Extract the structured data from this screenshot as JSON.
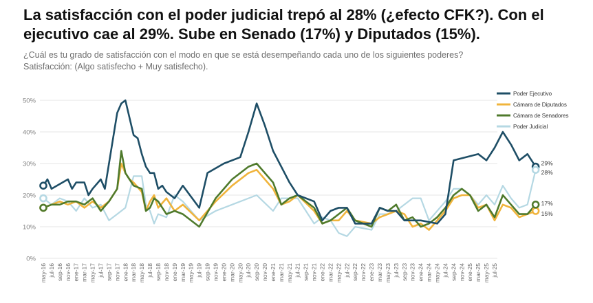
{
  "header": {
    "title_line1": "La satisfacción con el poder judicial trepó al 28% (¿efecto CFK?). Con el",
    "title_line2": "ejecutivo cae al 29%. Sube en Senado (17%) y Diputados (15%).",
    "subtitle_line1": "¿Cuál es tu grado de satisfacción con el modo en que se está desempeñando cada uno de los siguientes poderes?",
    "subtitle_line2": "Satisfacción: (Algo satisfecho + Muy satisfecho)."
  },
  "chart_data": {
    "type": "line",
    "ylim": [
      0,
      50
    ],
    "yticks": [
      "0%",
      "10%",
      "20%",
      "30%",
      "40%",
      "50%"
    ],
    "xticks": [
      "may-16",
      "jul-16",
      "sep-16",
      "nov-16",
      "ene-17",
      "mar-17",
      "may-17",
      "jul-17",
      "sep-17",
      "nov-17",
      "ene-18",
      "mar-18",
      "may-18",
      "jul-18",
      "sep-18",
      "nov-18",
      "ene-19",
      "mar-19",
      "may-19",
      "jul-19",
      "sep-19",
      "nov-19",
      "ene-20",
      "mar-20",
      "may-20",
      "jul-20",
      "sep-20",
      "nov-20",
      "ene-21",
      "mar-21",
      "may-21",
      "jul-21",
      "sep-21",
      "nov-21",
      "ene-22",
      "mar-22",
      "may-22",
      "jul-22",
      "sep-22",
      "nov-22",
      "ene-23",
      "mar-23",
      "may-23",
      "jul-23",
      "sep-23",
      "nov-23",
      "ene-24",
      "mar-24",
      "may-24",
      "jul-24",
      "sep-24",
      "nov-24",
      "ene-25",
      "mar-25",
      "may-25",
      "jul-25"
    ],
    "grid": true,
    "legend_position": "top-right",
    "series": [
      {
        "name": "Poder Ejecutivo",
        "color": "#1e4e66",
        "end_label": "29%",
        "points": [
          [
            0,
            23
          ],
          [
            0.5,
            25
          ],
          [
            1,
            22
          ],
          [
            3,
            25
          ],
          [
            3.5,
            22
          ],
          [
            4,
            24
          ],
          [
            5,
            24
          ],
          [
            5.5,
            20
          ],
          [
            6,
            22
          ],
          [
            7,
            25
          ],
          [
            7.5,
            22
          ],
          [
            8,
            30
          ],
          [
            9,
            46
          ],
          [
            9.5,
            49
          ],
          [
            10,
            50
          ],
          [
            11,
            39
          ],
          [
            11.5,
            38
          ],
          [
            12,
            33
          ],
          [
            12.5,
            29
          ],
          [
            13,
            27
          ],
          [
            13.5,
            27
          ],
          [
            14,
            22
          ],
          [
            14.5,
            23
          ],
          [
            15,
            21
          ],
          [
            16,
            19
          ],
          [
            17,
            23
          ],
          [
            19,
            16
          ],
          [
            20,
            27
          ],
          [
            22,
            30
          ],
          [
            24,
            32
          ],
          [
            25,
            40
          ],
          [
            26,
            49
          ],
          [
            27,
            42
          ],
          [
            28,
            34
          ],
          [
            30,
            24
          ],
          [
            31,
            20
          ],
          [
            33,
            18
          ],
          [
            34,
            12
          ],
          [
            35,
            15
          ],
          [
            36,
            16
          ],
          [
            37,
            16
          ],
          [
            38,
            11
          ],
          [
            40,
            11
          ],
          [
            41,
            16
          ],
          [
            42,
            15
          ],
          [
            43,
            15
          ],
          [
            44,
            12
          ],
          [
            46,
            12
          ],
          [
            48,
            11
          ],
          [
            49,
            14
          ],
          [
            50,
            31
          ],
          [
            53,
            33
          ],
          [
            54,
            31
          ],
          [
            55,
            35
          ],
          [
            56,
            40
          ],
          [
            57,
            36
          ],
          [
            58,
            31
          ],
          [
            59,
            33
          ],
          [
            60,
            29
          ]
        ]
      },
      {
        "name": "Cámara de Diputados",
        "color": "#f0b43c",
        "end_label": "15%",
        "points": [
          [
            0,
            16
          ],
          [
            1,
            17
          ],
          [
            2,
            18
          ],
          [
            3,
            17
          ],
          [
            4,
            18
          ],
          [
            5,
            16
          ],
          [
            6,
            18
          ],
          [
            7,
            16
          ],
          [
            8,
            18
          ],
          [
            9,
            22
          ],
          [
            9.5,
            30
          ],
          [
            10,
            27
          ],
          [
            10.5,
            25
          ],
          [
            11,
            24
          ],
          [
            12,
            21
          ],
          [
            12.5,
            15
          ],
          [
            13,
            18
          ],
          [
            13.5,
            20
          ],
          [
            14,
            16
          ],
          [
            15,
            19
          ],
          [
            16,
            15
          ],
          [
            17,
            17
          ],
          [
            19,
            12
          ],
          [
            21,
            18
          ],
          [
            23,
            23
          ],
          [
            25,
            27
          ],
          [
            26,
            28
          ],
          [
            28,
            22
          ],
          [
            29,
            17
          ],
          [
            30,
            18
          ],
          [
            31,
            20
          ],
          [
            33,
            15
          ],
          [
            34,
            11
          ],
          [
            35,
            12
          ],
          [
            36,
            12
          ],
          [
            37,
            15
          ],
          [
            38,
            12
          ],
          [
            40,
            11
          ],
          [
            41,
            13
          ],
          [
            42,
            14
          ],
          [
            43,
            15
          ],
          [
            44,
            14
          ],
          [
            45,
            10
          ],
          [
            46,
            11
          ],
          [
            47,
            9
          ],
          [
            48,
            12
          ],
          [
            49,
            15
          ],
          [
            50,
            19
          ],
          [
            51,
            20
          ],
          [
            52,
            20
          ],
          [
            53,
            16
          ],
          [
            54,
            17
          ],
          [
            55,
            12
          ],
          [
            56,
            17
          ],
          [
            57,
            16
          ],
          [
            58,
            13
          ],
          [
            59,
            14
          ],
          [
            60,
            15
          ]
        ]
      },
      {
        "name": "Cámara de Senadores",
        "color": "#4f7a2c",
        "end_label": "17%",
        "points": [
          [
            0,
            16
          ],
          [
            1,
            17
          ],
          [
            2,
            17
          ],
          [
            3,
            18
          ],
          [
            4,
            18
          ],
          [
            5,
            17
          ],
          [
            6,
            19
          ],
          [
            7,
            15
          ],
          [
            8,
            18
          ],
          [
            9,
            22
          ],
          [
            9.5,
            34
          ],
          [
            10,
            27
          ],
          [
            10.5,
            25
          ],
          [
            11,
            23
          ],
          [
            12,
            22
          ],
          [
            12.5,
            15
          ],
          [
            13,
            16
          ],
          [
            13.5,
            19
          ],
          [
            14,
            18
          ],
          [
            15,
            14
          ],
          [
            16,
            15
          ],
          [
            17,
            14
          ],
          [
            19,
            10
          ],
          [
            21,
            19
          ],
          [
            23,
            25
          ],
          [
            25,
            29
          ],
          [
            26,
            30
          ],
          [
            28,
            24
          ],
          [
            29,
            17
          ],
          [
            30,
            19
          ],
          [
            31,
            20
          ],
          [
            33,
            16
          ],
          [
            34,
            11
          ],
          [
            35,
            12
          ],
          [
            36,
            14
          ],
          [
            37,
            16
          ],
          [
            38,
            12
          ],
          [
            40,
            10
          ],
          [
            41,
            16
          ],
          [
            42,
            15
          ],
          [
            43,
            17
          ],
          [
            44,
            12
          ],
          [
            45,
            13
          ],
          [
            46,
            10
          ],
          [
            47,
            11
          ],
          [
            48,
            13
          ],
          [
            49,
            16
          ],
          [
            50,
            20
          ],
          [
            51,
            22
          ],
          [
            52,
            20
          ],
          [
            53,
            15
          ],
          [
            54,
            17
          ],
          [
            55,
            13
          ],
          [
            56,
            20
          ],
          [
            57,
            17
          ],
          [
            58,
            14
          ],
          [
            59,
            14
          ],
          [
            60,
            17
          ]
        ]
      },
      {
        "name": "Poder Judicial",
        "color": "#b5d8e3",
        "end_label": "28%",
        "points": [
          [
            0,
            19
          ],
          [
            1,
            17
          ],
          [
            2,
            19
          ],
          [
            3,
            18
          ],
          [
            4,
            15
          ],
          [
            5,
            19
          ],
          [
            6,
            16
          ],
          [
            7,
            17
          ],
          [
            8,
            12
          ],
          [
            9,
            14
          ],
          [
            10,
            16
          ],
          [
            11,
            26
          ],
          [
            12,
            26
          ],
          [
            12.5,
            17
          ],
          [
            13,
            15
          ],
          [
            13.5,
            11
          ],
          [
            14,
            14
          ],
          [
            15,
            13
          ],
          [
            16,
            20
          ],
          [
            17,
            18
          ],
          [
            19,
            12
          ],
          [
            21,
            15
          ],
          [
            23,
            17
          ],
          [
            25,
            19
          ],
          [
            26,
            20
          ],
          [
            28,
            15
          ],
          [
            29,
            19
          ],
          [
            30,
            19
          ],
          [
            31,
            19
          ],
          [
            33,
            11
          ],
          [
            34,
            13
          ],
          [
            35,
            12
          ],
          [
            36,
            8
          ],
          [
            37,
            7
          ],
          [
            38,
            10
          ],
          [
            40,
            9
          ],
          [
            41,
            14
          ],
          [
            42,
            14
          ],
          [
            43,
            15
          ],
          [
            44,
            17
          ],
          [
            45,
            19
          ],
          [
            46,
            19
          ],
          [
            47,
            12
          ],
          [
            48,
            15
          ],
          [
            49,
            18
          ],
          [
            50,
            22
          ],
          [
            51,
            22
          ],
          [
            52,
            20
          ],
          [
            53,
            17
          ],
          [
            54,
            20
          ],
          [
            55,
            17
          ],
          [
            56,
            23
          ],
          [
            57,
            19
          ],
          [
            58,
            16
          ],
          [
            59,
            17
          ],
          [
            60,
            28
          ]
        ]
      }
    ]
  }
}
